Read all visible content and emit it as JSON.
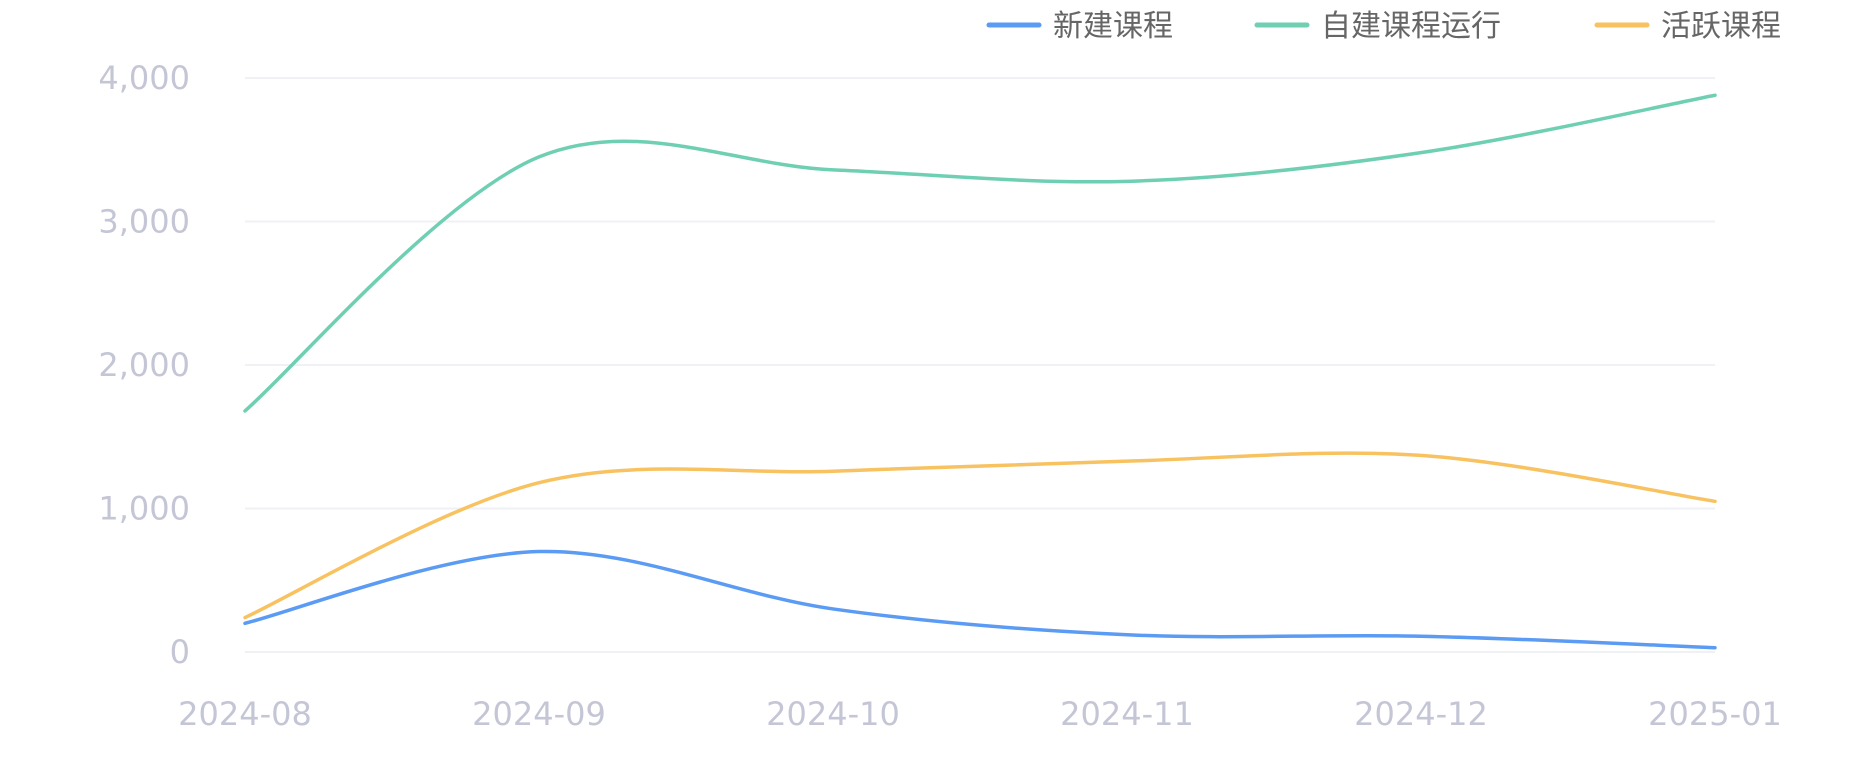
{
  "chart_data": {
    "type": "line",
    "smooth": true,
    "x": [
      "2024-08",
      "2024-09",
      "2024-10",
      "2024-11",
      "2024-12",
      "2025-01"
    ],
    "ylim": [
      0,
      4000
    ],
    "yticks": [
      0,
      1000,
      2000,
      3000,
      4000
    ],
    "ytick_labels": [
      "0",
      "1,000",
      "2,000",
      "3,000",
      "4,000"
    ],
    "grid": true,
    "legend_position": "top-right",
    "series": [
      {
        "name": "新建课程",
        "color": "#5b9bf4",
        "values": [
          200,
          700,
          300,
          120,
          110,
          30
        ]
      },
      {
        "name": "自建课程运行",
        "color": "#6fcfb2",
        "values": [
          1680,
          3450,
          3360,
          3280,
          3480,
          3880
        ]
      },
      {
        "name": "活跃课程",
        "color": "#f8c260",
        "values": [
          240,
          1180,
          1260,
          1330,
          1370,
          1050
        ]
      }
    ]
  }
}
